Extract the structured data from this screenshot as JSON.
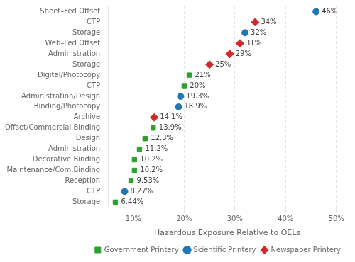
{
  "chart_data": {
    "type": "scatter",
    "xlabel": "Hazardous Exposure Relative to OELs",
    "categories": [
      "Sheet–Fed Offset",
      "CTP",
      "Storage",
      "Web–Fed Offset",
      "Administration",
      "Storage",
      "Digital/Photocopy",
      "CTP",
      "Administration/Design",
      "Binding/Photocopy",
      "Archive",
      "Offset/Commercial Binding",
      "Design",
      "Administration",
      "Decorative Binding",
      "Maintenance/Com.Binding",
      "Reception",
      "CTP",
      "Storage"
    ],
    "series": [
      {
        "name": "Government Printery",
        "color": "#2ca02c",
        "marker": "square",
        "values": [
          null,
          null,
          null,
          null,
          null,
          null,
          21,
          20,
          null,
          null,
          null,
          13.9,
          12.3,
          11.2,
          10.2,
          10.2,
          9.53,
          null,
          6.44
        ],
        "value_labels": [
          null,
          null,
          null,
          null,
          null,
          null,
          "21%",
          "20%",
          null,
          null,
          null,
          "13.9%",
          "12.3%",
          "11.2%",
          "10.2%",
          "10.2%",
          "9.53%",
          null,
          "6.44%"
        ]
      },
      {
        "name": "Scientific Printery",
        "color": "#1f77b4",
        "marker": "circle",
        "values": [
          46,
          null,
          32,
          null,
          null,
          null,
          null,
          null,
          19.3,
          18.9,
          null,
          null,
          null,
          null,
          null,
          null,
          null,
          8.27,
          null
        ],
        "value_labels": [
          "46%",
          null,
          "32%",
          null,
          null,
          null,
          null,
          null,
          "19.3%",
          "18.9%",
          null,
          null,
          null,
          null,
          null,
          null,
          null,
          "8.27%",
          null
        ]
      },
      {
        "name": "Newspaper Printery",
        "color": "#d62728",
        "marker": "diamond",
        "values": [
          null,
          34,
          null,
          31,
          29,
          25,
          null,
          null,
          null,
          null,
          14.1,
          null,
          null,
          null,
          null,
          null,
          null,
          null,
          null
        ],
        "value_labels": [
          null,
          "34%",
          null,
          "31%",
          "29%",
          "25%",
          null,
          null,
          null,
          null,
          "14.1%",
          null,
          null,
          null,
          null,
          null,
          null,
          null,
          null
        ]
      }
    ],
    "xlim": [
      5,
      52
    ],
    "xticks": [
      {
        "value": 10,
        "label": "10%"
      },
      {
        "value": 20,
        "label": "20%"
      },
      {
        "value": 30,
        "label": "30%"
      },
      {
        "value": 40,
        "label": "40%"
      },
      {
        "value": 50,
        "label": "50%"
      }
    ],
    "grid": "x",
    "legend": "lower right",
    "data_labels": true
  }
}
